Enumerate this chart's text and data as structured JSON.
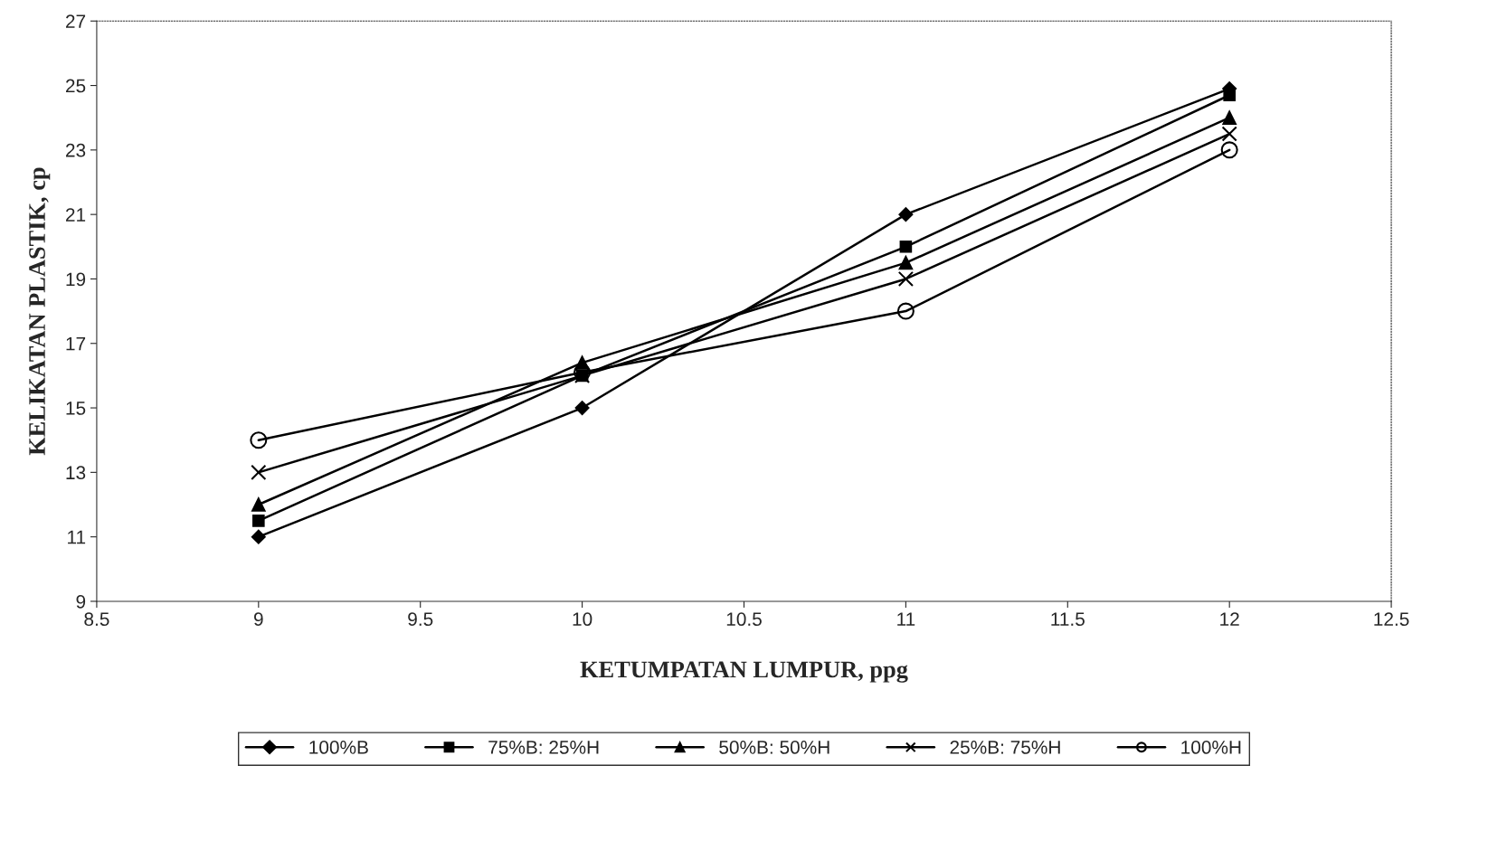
{
  "chart_data": {
    "type": "line",
    "xlabel": "KETUMPATAN LUMPUR, ppg",
    "ylabel": "KELIKATAN PLASTIK, cp",
    "x": [
      9,
      10,
      11,
      12
    ],
    "series": [
      {
        "name": "100%B",
        "color": "#000000",
        "marker": "diamond",
        "values": [
          11,
          15,
          21,
          24.9
        ]
      },
      {
        "name": "75%B: 25%H",
        "color": "#000000",
        "marker": "square",
        "values": [
          11.5,
          16,
          20,
          24.7
        ]
      },
      {
        "name": "50%B: 50%H",
        "color": "#000000",
        "marker": "triangle",
        "values": [
          12,
          16.4,
          19.5,
          24
        ]
      },
      {
        "name": "25%B: 75%H",
        "color": "#000000",
        "marker": "cross",
        "values": [
          13,
          16,
          19,
          23.5
        ]
      },
      {
        "name": "100%H",
        "color": "#000000",
        "marker": "circle",
        "values": [
          14,
          16.1,
          18,
          23
        ]
      }
    ],
    "xlim": [
      8.5,
      12.5
    ],
    "xticks": [
      8.5,
      9,
      9.5,
      10,
      10.5,
      11,
      11.5,
      12,
      12.5
    ],
    "ylim": [
      9,
      27
    ],
    "yticks": [
      9,
      11,
      13,
      15,
      17,
      19,
      21,
      23,
      25,
      27
    ],
    "grid": false,
    "legend": "bottom",
    "line_style": "solid"
  }
}
